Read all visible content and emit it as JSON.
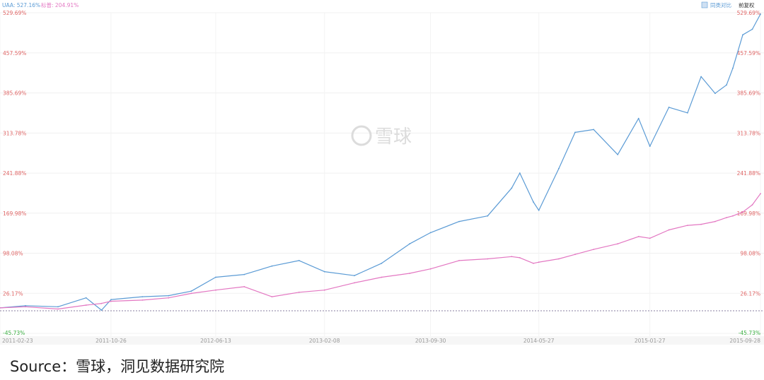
{
  "legend": {
    "series1": "UAA: 527.16%",
    "series2": "标普: 204.91%"
  },
  "controls": {
    "compare_label": "同类对比",
    "adjust_label": "前复权"
  },
  "watermark": "雪球",
  "source": "Source：雪球，洞见数据研究院",
  "colors": {
    "uaa": "#5b9bd5",
    "sp": "#e377c2",
    "axis_pos": "#e06666",
    "axis_neg": "#3cb043"
  },
  "chart_data": {
    "type": "line",
    "ylim": [
      -45.73,
      529.69
    ],
    "yticks": [
      "529.69%",
      "457.59%",
      "385.69%",
      "313.78%",
      "241.88%",
      "169.98%",
      "98.08%",
      "26.17%",
      "-45.73%"
    ],
    "ytick_values": [
      529.69,
      457.59,
      385.69,
      313.78,
      241.88,
      169.98,
      98.08,
      26.17,
      -45.73
    ],
    "xticks": [
      "2011-02-23",
      "2011-10-26",
      "2012-06-13",
      "2013-02-08",
      "2013-09-30",
      "2014-05-27",
      "2015-01-27",
      "2015-09-28"
    ],
    "x_dates": [
      "2011-02-23",
      "2011-04-20",
      "2011-07-01",
      "2011-09-01",
      "2011-10-05",
      "2011-10-26",
      "2012-01-03",
      "2012-03-01",
      "2012-04-20",
      "2012-06-13",
      "2012-08-15",
      "2012-10-15",
      "2012-12-14",
      "2013-02-08",
      "2013-04-15",
      "2013-06-14",
      "2013-08-15",
      "2013-09-30",
      "2013-12-02",
      "2014-02-03",
      "2014-03-28",
      "2014-04-15",
      "2014-05-15",
      "2014-05-27",
      "2014-07-10",
      "2014-08-15",
      "2014-09-25",
      "2014-11-17",
      "2015-01-02",
      "2015-01-27",
      "2015-03-10",
      "2015-04-20",
      "2015-05-20",
      "2015-06-20",
      "2015-07-15",
      "2015-07-29",
      "2015-08-20",
      "2015-09-10",
      "2015-09-28"
    ],
    "series": [
      {
        "name": "UAA",
        "values": [
          0,
          4,
          2,
          18,
          -4,
          15,
          20,
          22,
          30,
          55,
          60,
          75,
          85,
          65,
          58,
          80,
          115,
          135,
          155,
          165,
          215,
          242,
          190,
          175,
          250,
          315,
          320,
          275,
          340,
          290,
          360,
          350,
          415,
          385,
          400,
          430,
          490,
          500,
          527.16
        ]
      },
      {
        "name": "标普",
        "values": [
          0,
          2,
          -2,
          5,
          8,
          12,
          14,
          18,
          26,
          32,
          38,
          20,
          28,
          32,
          45,
          55,
          62,
          70,
          85,
          88,
          92,
          90,
          80,
          82,
          88,
          96,
          105,
          115,
          128,
          125,
          140,
          148,
          150,
          155,
          162,
          165,
          172,
          185,
          204.91
        ]
      }
    ]
  }
}
